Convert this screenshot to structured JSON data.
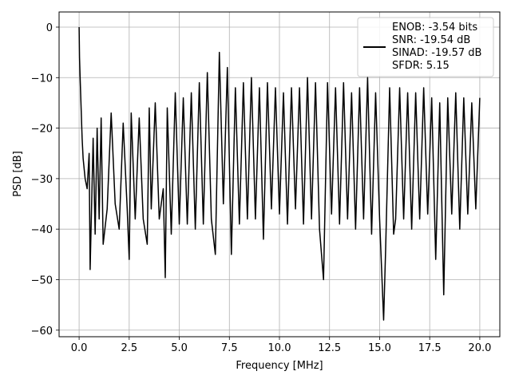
{
  "chart_data": {
    "type": "line",
    "title": "",
    "xlabel": "Frequency [MHz]",
    "ylabel": "PSD [dB]",
    "xlim": [
      -1.0,
      21.0
    ],
    "ylim": [
      -61.3,
      3.0
    ],
    "xticks": [
      0.0,
      2.5,
      5.0,
      7.5,
      10.0,
      12.5,
      15.0,
      17.5,
      20.0
    ],
    "xtick_labels": [
      "0.0",
      "2.5",
      "5.0",
      "7.5",
      "10.0",
      "12.5",
      "15.0",
      "17.5",
      "20.0"
    ],
    "yticks": [
      0,
      -10,
      -20,
      -30,
      -40,
      -50,
      -60
    ],
    "ytick_labels": [
      "0",
      "−10",
      "−20",
      "−30",
      "−40",
      "−50",
      "−60"
    ],
    "grid": true,
    "legend_position": "top-right",
    "legend_lines": [
      "ENOB: -3.54 bits",
      "SNR: -19.54 dB",
      "SINAD: -19.57 dB",
      "SFDR: 5.15"
    ],
    "series": [
      {
        "color": "#000000",
        "x": [
          0.0,
          0.02,
          0.05,
          0.1,
          0.15,
          0.2,
          0.3,
          0.4,
          0.5,
          0.55,
          0.7,
          0.8,
          0.9,
          1.0,
          1.1,
          1.2,
          1.4,
          1.6,
          1.8,
          2.0,
          2.2,
          2.4,
          2.5,
          2.6,
          2.8,
          3.0,
          3.2,
          3.4,
          3.5,
          3.6,
          3.8,
          4.0,
          4.2,
          4.3,
          4.4,
          4.6,
          4.8,
          5.0,
          5.2,
          5.4,
          5.6,
          5.8,
          6.0,
          6.2,
          6.4,
          6.6,
          6.8,
          7.0,
          7.2,
          7.4,
          7.6,
          7.8,
          8.0,
          8.2,
          8.4,
          8.6,
          8.8,
          9.0,
          9.2,
          9.4,
          9.6,
          9.8,
          10.0,
          10.2,
          10.4,
          10.6,
          10.8,
          11.0,
          11.2,
          11.4,
          11.6,
          11.8,
          12.0,
          12.2,
          12.4,
          12.6,
          12.8,
          13.0,
          13.2,
          13.4,
          13.6,
          13.8,
          14.0,
          14.2,
          14.4,
          14.6,
          14.8,
          15.0,
          15.2,
          15.3,
          15.5,
          15.7,
          15.8,
          16.0,
          16.2,
          16.4,
          16.6,
          16.8,
          17.0,
          17.2,
          17.4,
          17.6,
          17.8,
          18.0,
          18.2,
          18.4,
          18.6,
          18.8,
          19.0,
          19.2,
          19.4,
          19.6,
          19.8,
          20.0
        ],
        "y": [
          0.0,
          -6.0,
          -10.0,
          -16.0,
          -22.0,
          -26.0,
          -30.0,
          -32.0,
          -25.0,
          -48.0,
          -22.0,
          -41.0,
          -20.0,
          -38.0,
          -18.0,
          -43.0,
          -36.0,
          -17.0,
          -35.0,
          -40.0,
          -19.0,
          -36.0,
          -46.0,
          -17.0,
          -38.0,
          -18.0,
          -38.0,
          -43.0,
          -16.0,
          -36.0,
          -15.0,
          -38.0,
          -32.0,
          -49.6,
          -16.0,
          -41.0,
          -13.0,
          -39.0,
          -14.0,
          -39.0,
          -13.0,
          -40.0,
          -11.0,
          -39.0,
          -9.0,
          -38.0,
          -45.0,
          -5.0,
          -35.0,
          -8.0,
          -45.0,
          -12.0,
          -39.0,
          -11.0,
          -38.0,
          -10.0,
          -38.0,
          -12.0,
          -42.0,
          -11.0,
          -36.0,
          -12.0,
          -37.0,
          -13.0,
          -39.0,
          -12.0,
          -36.0,
          -12.0,
          -39.0,
          -10.0,
          -38.0,
          -11.0,
          -40.0,
          -50.0,
          -11.0,
          -37.0,
          -12.0,
          -39.0,
          -11.0,
          -38.0,
          -13.0,
          -40.0,
          -12.0,
          -38.0,
          -10.0,
          -41.0,
          -13.0,
          -38.0,
          -58.0,
          -44.0,
          -12.0,
          -41.0,
          -38.0,
          -12.0,
          -38.0,
          -13.0,
          -40.0,
          -13.0,
          -38.0,
          -12.0,
          -37.0,
          -14.0,
          -46.0,
          -15.0,
          -53.0,
          -14.0,
          -37.0,
          -13.0,
          -40.0,
          -14.0,
          -37.0,
          -15.0,
          -36.0,
          -14.0
        ]
      }
    ]
  }
}
